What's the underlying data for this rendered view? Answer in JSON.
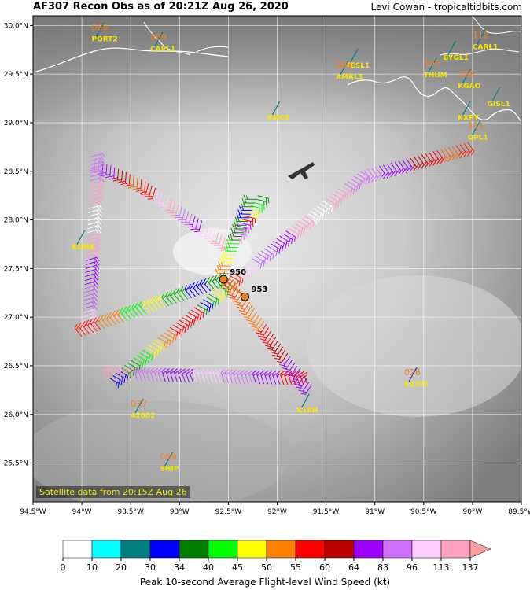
{
  "header": {
    "title": "AF307 Recon Obs as of 20:21Z Aug 26, 2020",
    "credit": "Levi Cowan - tropicaltidbits.com"
  },
  "map": {
    "extent": {
      "lon_min": -94.5,
      "lon_max": -89.5,
      "lat_min": 25.1,
      "lat_max": 30.1
    },
    "lat_ticks": [
      "30.0°N",
      "29.5°N",
      "29.0°N",
      "28.5°N",
      "28.0°N",
      "27.5°N",
      "27.0°N",
      "26.5°N",
      "26.0°N",
      "25.5°N"
    ],
    "lon_ticks": [
      "94.5°W",
      "94°W",
      "93.5°W",
      "93°W",
      "92.5°W",
      "92°W",
      "91.5°W",
      "91°W",
      "90.5°W",
      "90°W",
      "89.5°W"
    ],
    "satellite_caption": "Satellite data from 20:15Z Aug 26"
  },
  "stations": [
    {
      "id": "PORT2",
      "value": "089",
      "lon": -93.9,
      "lat": 29.87
    },
    {
      "id": "CAPL1",
      "value": "069",
      "lon": -93.3,
      "lat": 29.77
    },
    {
      "id": "TESL1",
      "value": "",
      "lon": -91.3,
      "lat": 29.6
    },
    {
      "id": "AMRL1",
      "value": "093",
      "lon": -91.4,
      "lat": 29.48
    },
    {
      "id": "THUM",
      "value": "105",
      "lon": -90.5,
      "lat": 29.5
    },
    {
      "id": "CARL1",
      "value": "112",
      "lon": -90.0,
      "lat": 29.79
    },
    {
      "id": "BYGL1",
      "value": "",
      "lon": -90.3,
      "lat": 29.68
    },
    {
      "id": "KGAO",
      "value": "108",
      "lon": -90.15,
      "lat": 29.39
    },
    {
      "id": "GISL1",
      "value": "",
      "lon": -89.85,
      "lat": 29.2
    },
    {
      "id": "KXPY",
      "value": "",
      "lon": -90.15,
      "lat": 29.06
    },
    {
      "id": "GPL1",
      "value": "111",
      "lon": -90.05,
      "lat": 28.86
    },
    {
      "id": "KMCE",
      "value": "",
      "lon": -92.1,
      "lat": 29.06
    },
    {
      "id": "KEMK",
      "value": "",
      "lon": -94.1,
      "lat": 27.73
    },
    {
      "id": "42002",
      "value": "037",
      "lon": -93.5,
      "lat": 26.0
    },
    {
      "id": "K18H",
      "value": "",
      "lon": -91.8,
      "lat": 26.05
    },
    {
      "id": "42395",
      "value": "026",
      "lon": -90.7,
      "lat": 26.32
    },
    {
      "id": "SHIP",
      "value": "059",
      "lon": -93.2,
      "lat": 25.45
    }
  ],
  "pressure_fixes": [
    {
      "label": "950",
      "lon": -92.55,
      "lat": 27.39
    },
    {
      "label": "953",
      "lon": -92.33,
      "lat": 27.21
    }
  ],
  "flight_track": [
    [
      -90.05,
      28.8
    ],
    [
      -91.15,
      28.5
    ],
    [
      -92.45,
      27.45
    ],
    [
      -92.85,
      27.1
    ],
    [
      -93.75,
      26.35
    ],
    [
      -91.65,
      26.3
    ],
    [
      -92.5,
      27.45
    ],
    [
      -92.2,
      28.25
    ],
    [
      -92.5,
      27.8
    ],
    [
      -93.35,
      28.4
    ],
    [
      -93.9,
      28.65
    ],
    [
      -94.0,
      26.8
    ],
    [
      -92.45,
      27.35
    ],
    [
      -92.4,
      27.2
    ]
  ],
  "colorbar": {
    "ticks": [
      "0",
      "10",
      "20",
      "30",
      "34",
      "40",
      "45",
      "50",
      "55",
      "60",
      "64",
      "83",
      "96",
      "113",
      "137"
    ],
    "colors": [
      "#ffffff",
      "#00ffff",
      "#008080",
      "#0000ff",
      "#008000",
      "#00ff00",
      "#ffff00",
      "#ff8000",
      "#ff0000",
      "#c00000",
      "#a000ff",
      "#d070ff",
      "#ffccff",
      "#ffa0c0"
    ],
    "label": "Peak 10-second Average Flight-level Wind Speed (kt)"
  }
}
